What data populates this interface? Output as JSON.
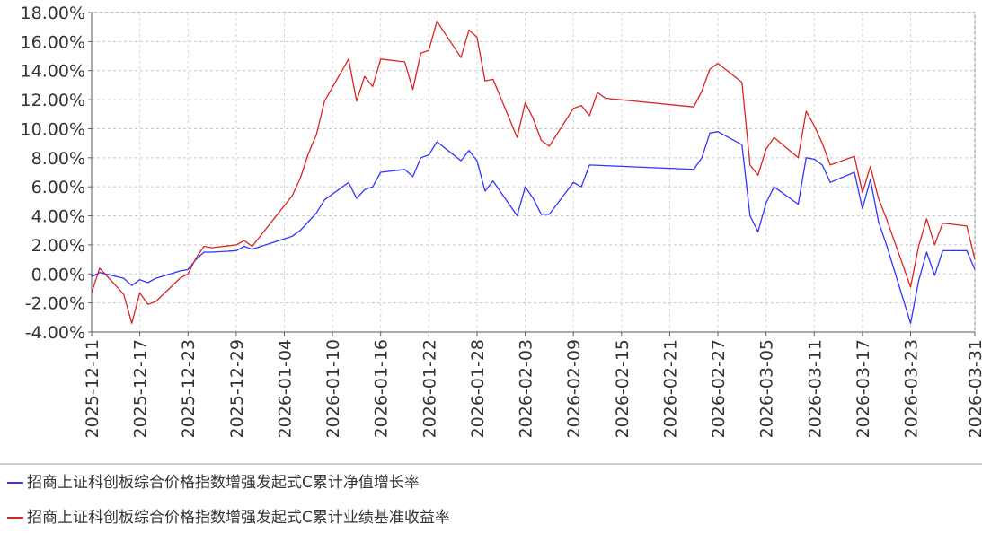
{
  "chart_data": {
    "type": "line",
    "title": "",
    "xlabel": "",
    "ylabel": "",
    "ylim": [
      -4.0,
      18.0
    ],
    "y_ticks": [
      18,
      16,
      14,
      12,
      10,
      8,
      6,
      4,
      2,
      0,
      -2,
      -4
    ],
    "y_tick_labels": [
      "18.00%",
      "16.00%",
      "14.00%",
      "12.00%",
      "10.00%",
      "8.00%",
      "6.00%",
      "4.00%",
      "2.00%",
      "0.00%",
      "-2.00%",
      "-4.00%"
    ],
    "x_tick_labels": [
      "2025-12-11",
      "2025-12-17",
      "2025-12-23",
      "2025-12-29",
      "2026-01-04",
      "2026-01-10",
      "2026-01-16",
      "2026-01-22",
      "2026-01-28",
      "2026-02-03",
      "2026-02-09",
      "2026-02-15",
      "2026-02-21",
      "2026-02-27",
      "2026-03-05",
      "2026-03-11",
      "2026-03-17",
      "2026-03-23",
      "2026-03-31"
    ],
    "grid": true,
    "legend_position": "bottom",
    "series": [
      {
        "name": "招商上证科创板综合价格指数增强发起式C累计净值增长率",
        "color": "#3333ff",
        "points": [
          [
            "2025-12-11",
            -0.2
          ],
          [
            "2025-12-12",
            0.1
          ],
          [
            "2025-12-15",
            -0.3
          ],
          [
            "2025-12-16",
            -0.8
          ],
          [
            "2025-12-17",
            -0.4
          ],
          [
            "2025-12-18",
            -0.6
          ],
          [
            "2025-12-19",
            -0.3
          ],
          [
            "2025-12-22",
            0.2
          ],
          [
            "2025-12-23",
            0.3
          ],
          [
            "2025-12-24",
            1.0
          ],
          [
            "2025-12-25",
            1.5
          ],
          [
            "2025-12-26",
            1.5
          ],
          [
            "2025-12-29",
            1.6
          ],
          [
            "2025-12-30",
            1.9
          ],
          [
            "2025-12-31",
            1.7
          ],
          [
            "2026-01-05",
            2.6
          ],
          [
            "2026-01-06",
            3.0
          ],
          [
            "2026-01-07",
            3.6
          ],
          [
            "2026-01-08",
            4.2
          ],
          [
            "2026-01-09",
            5.1
          ],
          [
            "2026-01-12",
            6.3
          ],
          [
            "2026-01-13",
            5.2
          ],
          [
            "2026-01-14",
            5.8
          ],
          [
            "2026-01-15",
            6.0
          ],
          [
            "2026-01-16",
            7.0
          ],
          [
            "2026-01-19",
            7.2
          ],
          [
            "2026-01-20",
            6.7
          ],
          [
            "2026-01-21",
            8.0
          ],
          [
            "2026-01-22",
            8.2
          ],
          [
            "2026-01-23",
            9.1
          ],
          [
            "2026-01-26",
            7.8
          ],
          [
            "2026-01-27",
            8.5
          ],
          [
            "2026-01-28",
            7.8
          ],
          [
            "2026-01-29",
            5.7
          ],
          [
            "2026-01-30",
            6.4
          ],
          [
            "2026-02-02",
            4.0
          ],
          [
            "2026-02-03",
            6.0
          ],
          [
            "2026-02-04",
            5.2
          ],
          [
            "2026-02-05",
            4.1
          ],
          [
            "2026-02-06",
            4.1
          ],
          [
            "2026-02-09",
            6.3
          ],
          [
            "2026-02-10",
            6.0
          ],
          [
            "2026-02-11",
            7.5
          ],
          [
            "2026-02-24",
            7.2
          ],
          [
            "2026-02-25",
            8.0
          ],
          [
            "2026-02-26",
            9.7
          ],
          [
            "2026-02-27",
            9.8
          ],
          [
            "2026-03-02",
            8.9
          ],
          [
            "2026-03-03",
            4.0
          ],
          [
            "2026-03-04",
            2.9
          ],
          [
            "2026-03-05",
            4.9
          ],
          [
            "2026-03-06",
            6.0
          ],
          [
            "2026-03-09",
            4.8
          ],
          [
            "2026-03-10",
            8.0
          ],
          [
            "2026-03-11",
            7.9
          ],
          [
            "2026-03-12",
            7.5
          ],
          [
            "2026-03-13",
            6.3
          ],
          [
            "2026-03-16",
            7.0
          ],
          [
            "2026-03-17",
            4.5
          ],
          [
            "2026-03-18",
            6.5
          ],
          [
            "2026-03-19",
            3.6
          ],
          [
            "2026-03-20",
            2.0
          ],
          [
            "2026-03-23",
            -3.4
          ],
          [
            "2026-03-24",
            -0.5
          ],
          [
            "2026-03-25",
            1.5
          ],
          [
            "2026-03-26",
            -0.1
          ],
          [
            "2026-03-27",
            1.6
          ],
          [
            "2026-03-30",
            1.6
          ],
          [
            "2026-03-31",
            0.3
          ]
        ]
      },
      {
        "name": "招商上证科创板综合价格指数增强发起式C累计业绩基准收益率",
        "color": "#dd2222",
        "points": [
          [
            "2025-12-11",
            -1.3
          ],
          [
            "2025-12-12",
            0.4
          ],
          [
            "2025-12-15",
            -1.4
          ],
          [
            "2025-12-16",
            -3.4
          ],
          [
            "2025-12-17",
            -1.3
          ],
          [
            "2025-12-18",
            -2.1
          ],
          [
            "2025-12-19",
            -1.9
          ],
          [
            "2025-12-22",
            -0.3
          ],
          [
            "2025-12-23",
            0.0
          ],
          [
            "2025-12-24",
            1.1
          ],
          [
            "2025-12-25",
            1.9
          ],
          [
            "2025-12-26",
            1.8
          ],
          [
            "2025-12-29",
            2.0
          ],
          [
            "2025-12-30",
            2.3
          ],
          [
            "2025-12-31",
            1.9
          ],
          [
            "2026-01-05",
            5.4
          ],
          [
            "2026-01-06",
            6.6
          ],
          [
            "2026-01-07",
            8.3
          ],
          [
            "2026-01-08",
            9.6
          ],
          [
            "2026-01-09",
            11.9
          ],
          [
            "2026-01-12",
            14.8
          ],
          [
            "2026-01-13",
            11.9
          ],
          [
            "2026-01-14",
            13.6
          ],
          [
            "2026-01-15",
            12.9
          ],
          [
            "2026-01-16",
            14.8
          ],
          [
            "2026-01-19",
            14.6
          ],
          [
            "2026-01-20",
            12.7
          ],
          [
            "2026-01-21",
            15.2
          ],
          [
            "2026-01-22",
            15.4
          ],
          [
            "2026-01-23",
            17.4
          ],
          [
            "2026-01-26",
            14.9
          ],
          [
            "2026-01-27",
            16.8
          ],
          [
            "2026-01-28",
            16.3
          ],
          [
            "2026-01-29",
            13.3
          ],
          [
            "2026-01-30",
            13.4
          ],
          [
            "2026-02-02",
            9.4
          ],
          [
            "2026-02-03",
            11.8
          ],
          [
            "2026-02-04",
            10.7
          ],
          [
            "2026-02-05",
            9.2
          ],
          [
            "2026-02-06",
            8.8
          ],
          [
            "2026-02-09",
            11.4
          ],
          [
            "2026-02-10",
            11.6
          ],
          [
            "2026-02-11",
            10.9
          ],
          [
            "2026-02-12",
            12.5
          ],
          [
            "2026-02-13",
            12.1
          ],
          [
            "2026-02-24",
            11.5
          ],
          [
            "2026-02-25",
            12.6
          ],
          [
            "2026-02-26",
            14.1
          ],
          [
            "2026-02-27",
            14.5
          ],
          [
            "2026-03-02",
            13.2
          ],
          [
            "2026-03-03",
            7.5
          ],
          [
            "2026-03-04",
            6.8
          ],
          [
            "2026-03-05",
            8.6
          ],
          [
            "2026-03-06",
            9.4
          ],
          [
            "2026-03-09",
            8.0
          ],
          [
            "2026-03-10",
            11.2
          ],
          [
            "2026-03-11",
            10.2
          ],
          [
            "2026-03-12",
            9.0
          ],
          [
            "2026-03-13",
            7.5
          ],
          [
            "2026-03-16",
            8.1
          ],
          [
            "2026-03-17",
            5.6
          ],
          [
            "2026-03-18",
            7.4
          ],
          [
            "2026-03-19",
            5.2
          ],
          [
            "2026-03-20",
            3.8
          ],
          [
            "2026-03-23",
            -0.9
          ],
          [
            "2026-03-24",
            1.9
          ],
          [
            "2026-03-25",
            3.8
          ],
          [
            "2026-03-26",
            2.0
          ],
          [
            "2026-03-27",
            3.5
          ],
          [
            "2026-03-30",
            3.3
          ],
          [
            "2026-03-31",
            1.0
          ]
        ]
      }
    ]
  }
}
